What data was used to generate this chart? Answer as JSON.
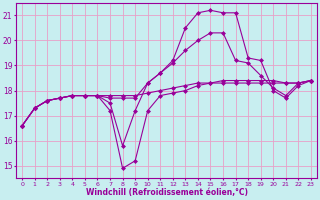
{
  "xlabel": "Windchill (Refroidissement éolien,°C)",
  "background_color": "#c8eef0",
  "grid_color": "#e8a0c8",
  "line_color": "#990099",
  "ylim": [
    14.5,
    21.5
  ],
  "xlim": [
    -0.5,
    23.5
  ],
  "yticks": [
    15,
    16,
    17,
    18,
    19,
    20,
    21
  ],
  "xticks": [
    0,
    1,
    2,
    3,
    4,
    5,
    6,
    7,
    8,
    9,
    10,
    11,
    12,
    13,
    14,
    15,
    16,
    17,
    18,
    19,
    20,
    21,
    22,
    23
  ],
  "line1_x": [
    0,
    1,
    2,
    3,
    4,
    5,
    6,
    7,
    8,
    9,
    10,
    11,
    12,
    13,
    14,
    15,
    16,
    17,
    18,
    19,
    20,
    21,
    22,
    23
  ],
  "line1_y": [
    16.6,
    17.3,
    17.6,
    17.7,
    17.8,
    17.8,
    17.8,
    17.8,
    17.8,
    17.8,
    17.9,
    18.0,
    18.1,
    18.2,
    18.3,
    18.3,
    18.3,
    18.3,
    18.3,
    18.3,
    18.3,
    18.3,
    18.3,
    18.4
  ],
  "line2_x": [
    0,
    1,
    2,
    3,
    4,
    5,
    6,
    7,
    8,
    9,
    10,
    11,
    12,
    13,
    14,
    15,
    16,
    17,
    18,
    19,
    20,
    21,
    22,
    23
  ],
  "line2_y": [
    16.6,
    17.3,
    17.6,
    17.7,
    17.8,
    17.8,
    17.8,
    17.7,
    17.7,
    17.7,
    18.3,
    18.7,
    19.1,
    19.6,
    20.0,
    20.3,
    20.3,
    19.2,
    19.1,
    18.6,
    18.1,
    17.8,
    18.3,
    18.4
  ],
  "line3_x": [
    0,
    1,
    2,
    3,
    4,
    5,
    6,
    7,
    8,
    9,
    10,
    11,
    12,
    13,
    14,
    15,
    16,
    17,
    18,
    19,
    20,
    21,
    22,
    23
  ],
  "line3_y": [
    16.6,
    17.3,
    17.6,
    17.7,
    17.8,
    17.8,
    17.8,
    17.2,
    14.9,
    15.2,
    17.2,
    17.8,
    17.9,
    18.0,
    18.2,
    18.3,
    18.4,
    18.4,
    18.4,
    18.4,
    18.4,
    18.3,
    18.3,
    18.4
  ],
  "line4_x": [
    0,
    1,
    2,
    3,
    4,
    5,
    6,
    7,
    8,
    9,
    10,
    11,
    12,
    13,
    14,
    15,
    16,
    17,
    18,
    19,
    20,
    21,
    22,
    23
  ],
  "line4_y": [
    16.6,
    17.3,
    17.6,
    17.7,
    17.8,
    17.8,
    17.8,
    17.5,
    15.8,
    17.2,
    18.3,
    18.7,
    19.2,
    20.5,
    21.1,
    21.2,
    21.1,
    21.1,
    19.3,
    19.2,
    18.0,
    17.7,
    18.2,
    18.4
  ]
}
